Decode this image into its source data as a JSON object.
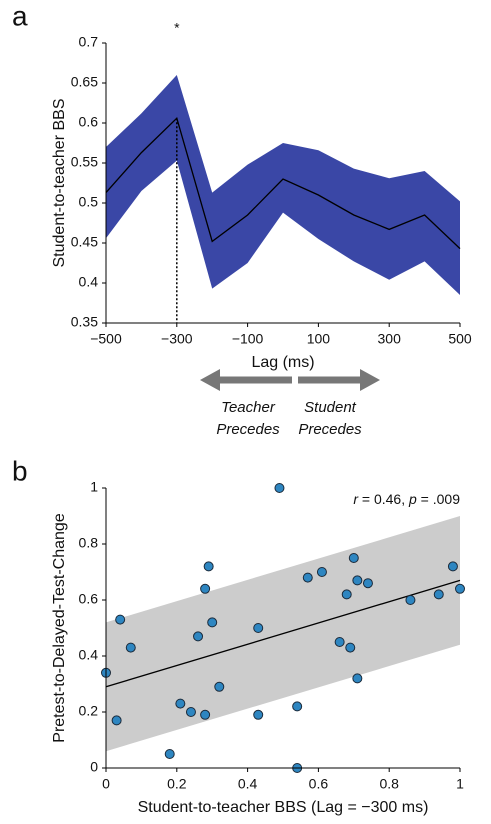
{
  "chart_data": [
    {
      "type": "line",
      "panel": "a",
      "ylabel": "Student-to-teacher BBS",
      "xlabel": "Lag (ms)",
      "x": [
        -500,
        -400,
        -300,
        -200,
        -100,
        0,
        100,
        200,
        300,
        400,
        500
      ],
      "series": [
        {
          "color": "#000000",
          "values": [
            0.513,
            0.563,
            0.606,
            0.452,
            0.485,
            0.53,
            0.51,
            0.485,
            0.467,
            0.485,
            0.443
          ]
        }
      ],
      "band": {
        "color": "#3a47a6",
        "upper": [
          0.57,
          0.612,
          0.66,
          0.513,
          0.548,
          0.575,
          0.566,
          0.543,
          0.531,
          0.54,
          0.502
        ],
        "lower": [
          0.456,
          0.515,
          0.553,
          0.393,
          0.425,
          0.488,
          0.455,
          0.427,
          0.404,
          0.427,
          0.385
        ]
      },
      "annotations": [
        {
          "text": "*",
          "x": -300
        }
      ],
      "arrows": [
        {
          "direction": "left",
          "label": [
            "Teacher",
            "Precedes"
          ]
        },
        {
          "direction": "right",
          "label": [
            "Student",
            "Precedes"
          ]
        }
      ],
      "xlim": [
        -500,
        500
      ],
      "xticks": [
        {
          "value": -500,
          "label": "−500"
        },
        {
          "value": -300,
          "label": "−300"
        },
        {
          "value": -100,
          "label": "−100"
        },
        100,
        300,
        500
      ],
      "ylim": [
        0.35,
        0.7
      ],
      "yticks": [
        0.35,
        0.4,
        0.45,
        0.5,
        0.55,
        0.6,
        0.65,
        0.7
      ]
    },
    {
      "type": "scatter",
      "panel": "b",
      "ylabel": "Pretest-to-Delayed-Test-Change",
      "xlabel": "Student-to-teacher BBS (Lag = −300 ms)",
      "color": "#2e86c1",
      "x": [
        0.0,
        0.03,
        0.04,
        0.07,
        0.18,
        0.21,
        0.24,
        0.26,
        0.28,
        0.28,
        0.29,
        0.3,
        0.32,
        0.43,
        0.43,
        0.49,
        0.54,
        0.54,
        0.57,
        0.61,
        0.66,
        0.68,
        0.69,
        0.7,
        0.71,
        0.71,
        0.74,
        0.86,
        0.94,
        0.98,
        1.0
      ],
      "y": [
        0.34,
        0.17,
        0.53,
        0.43,
        0.05,
        0.23,
        0.2,
        0.47,
        0.19,
        0.64,
        0.72,
        0.52,
        0.29,
        0.19,
        0.5,
        1.0,
        0.22,
        0.0,
        0.68,
        0.7,
        0.45,
        0.62,
        0.43,
        0.75,
        0.67,
        0.32,
        0.66,
        0.6,
        0.62,
        0.72,
        0.64
      ],
      "fit": {
        "x": [
          0,
          1
        ],
        "y": [
          0.29,
          0.67
        ],
        "upper": [
          0.52,
          0.9
        ],
        "lower": [
          0.06,
          0.44
        ],
        "band_color": "#cccccc"
      },
      "annotation": [
        "r",
        " = 0.46, ",
        "p",
        " = .009"
      ],
      "xlim": [
        0,
        1
      ],
      "xticks": [
        0,
        0.2,
        0.4,
        0.6,
        0.8,
        1
      ],
      "ylim": [
        0,
        1
      ],
      "yticks": [
        0,
        0.2,
        0.4,
        0.6,
        0.8,
        1
      ]
    }
  ]
}
